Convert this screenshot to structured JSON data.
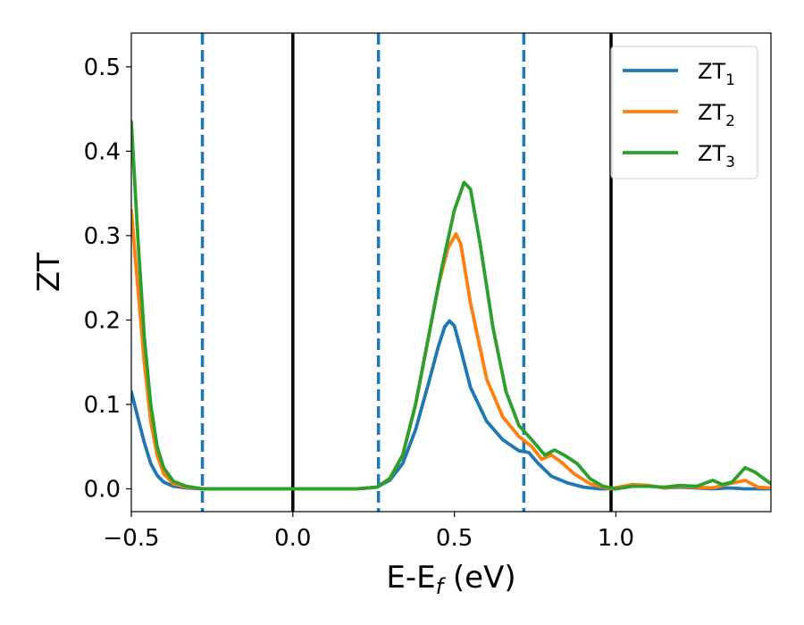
{
  "chart_data": {
    "type": "line",
    "xlabel": {
      "main": "E-E",
      "sub": "f",
      "unit": " (eV)"
    },
    "ylabel": "ZT",
    "xlim": [
      -0.5,
      1.48
    ],
    "ylim": [
      -0.027,
      0.54
    ],
    "x_ticks": [
      -0.5,
      0.0,
      0.5,
      1.0
    ],
    "x_tick_labels": [
      "−0.5",
      "0.0",
      "0.5",
      "1.0"
    ],
    "y_ticks": [
      0.0,
      0.1,
      0.2,
      0.3,
      0.4,
      0.5
    ],
    "y_tick_labels": [
      "0.0",
      "0.1",
      "0.2",
      "0.3",
      "0.4",
      "0.5"
    ],
    "grid": false,
    "legend_position": "top-right",
    "vertical_lines": [
      {
        "x": 0.0,
        "style": "solid",
        "color": "#000000"
      },
      {
        "x": 0.985,
        "style": "solid",
        "color": "#000000"
      },
      {
        "x": -0.28,
        "style": "dashed",
        "color": "#1f77b4"
      },
      {
        "x": 0.265,
        "style": "dashed",
        "color": "#1f77b4"
      },
      {
        "x": 0.715,
        "style": "dashed",
        "color": "#1f77b4"
      }
    ],
    "series": [
      {
        "name": "ZT",
        "sub": "1",
        "color": "#1f77b4",
        "points": [
          [
            -0.5,
            0.115
          ],
          [
            -0.48,
            0.085
          ],
          [
            -0.46,
            0.055
          ],
          [
            -0.44,
            0.03
          ],
          [
            -0.42,
            0.016
          ],
          [
            -0.4,
            0.008
          ],
          [
            -0.37,
            0.003
          ],
          [
            -0.33,
            0.001
          ],
          [
            -0.28,
            0.0
          ],
          [
            0.0,
            0.0
          ],
          [
            0.2,
            0.0
          ],
          [
            0.26,
            0.002
          ],
          [
            0.3,
            0.01
          ],
          [
            0.34,
            0.03
          ],
          [
            0.38,
            0.07
          ],
          [
            0.42,
            0.125
          ],
          [
            0.45,
            0.168
          ],
          [
            0.47,
            0.192
          ],
          [
            0.485,
            0.199
          ],
          [
            0.5,
            0.193
          ],
          [
            0.52,
            0.165
          ],
          [
            0.55,
            0.12
          ],
          [
            0.6,
            0.08
          ],
          [
            0.65,
            0.058
          ],
          [
            0.7,
            0.045
          ],
          [
            0.73,
            0.043
          ],
          [
            0.76,
            0.03
          ],
          [
            0.8,
            0.015
          ],
          [
            0.85,
            0.007
          ],
          [
            0.9,
            0.002
          ],
          [
            0.95,
            0.0
          ],
          [
            1.0,
            0.0
          ],
          [
            1.05,
            0.003
          ],
          [
            1.1,
            0.004
          ],
          [
            1.15,
            0.001
          ],
          [
            1.2,
            0.002
          ],
          [
            1.25,
            0.001
          ],
          [
            1.3,
            0.0
          ],
          [
            1.35,
            0.001
          ],
          [
            1.4,
            0.0
          ],
          [
            1.48,
            0.0
          ]
        ]
      },
      {
        "name": "ZT",
        "sub": "2",
        "color": "#ff7f0e",
        "points": [
          [
            -0.5,
            0.33
          ],
          [
            -0.48,
            0.24
          ],
          [
            -0.46,
            0.15
          ],
          [
            -0.44,
            0.08
          ],
          [
            -0.42,
            0.04
          ],
          [
            -0.4,
            0.018
          ],
          [
            -0.37,
            0.006
          ],
          [
            -0.33,
            0.002
          ],
          [
            -0.28,
            0.0
          ],
          [
            0.0,
            0.0
          ],
          [
            0.2,
            0.0
          ],
          [
            0.26,
            0.002
          ],
          [
            0.3,
            0.012
          ],
          [
            0.34,
            0.04
          ],
          [
            0.38,
            0.1
          ],
          [
            0.42,
            0.18
          ],
          [
            0.45,
            0.24
          ],
          [
            0.48,
            0.285
          ],
          [
            0.505,
            0.302
          ],
          [
            0.52,
            0.29
          ],
          [
            0.55,
            0.22
          ],
          [
            0.6,
            0.13
          ],
          [
            0.65,
            0.085
          ],
          [
            0.7,
            0.062
          ],
          [
            0.74,
            0.05
          ],
          [
            0.77,
            0.035
          ],
          [
            0.8,
            0.04
          ],
          [
            0.83,
            0.032
          ],
          [
            0.87,
            0.018
          ],
          [
            0.92,
            0.006
          ],
          [
            0.98,
            0.0
          ],
          [
            1.05,
            0.005
          ],
          [
            1.1,
            0.004
          ],
          [
            1.15,
            0.001
          ],
          [
            1.2,
            0.003
          ],
          [
            1.25,
            0.002
          ],
          [
            1.3,
            0.001
          ],
          [
            1.35,
            0.006
          ],
          [
            1.4,
            0.01
          ],
          [
            1.44,
            0.002
          ],
          [
            1.48,
            0.001
          ]
        ]
      },
      {
        "name": "ZT",
        "sub": "3",
        "color": "#2ca02c",
        "points": [
          [
            -0.5,
            0.435
          ],
          [
            -0.48,
            0.3
          ],
          [
            -0.46,
            0.18
          ],
          [
            -0.44,
            0.1
          ],
          [
            -0.42,
            0.05
          ],
          [
            -0.4,
            0.025
          ],
          [
            -0.37,
            0.009
          ],
          [
            -0.33,
            0.003
          ],
          [
            -0.28,
            0.0
          ],
          [
            0.0,
            0.0
          ],
          [
            0.2,
            0.0
          ],
          [
            0.26,
            0.002
          ],
          [
            0.3,
            0.012
          ],
          [
            0.34,
            0.04
          ],
          [
            0.38,
            0.1
          ],
          [
            0.42,
            0.18
          ],
          [
            0.46,
            0.26
          ],
          [
            0.5,
            0.33
          ],
          [
            0.53,
            0.363
          ],
          [
            0.55,
            0.355
          ],
          [
            0.58,
            0.29
          ],
          [
            0.62,
            0.19
          ],
          [
            0.66,
            0.115
          ],
          [
            0.7,
            0.075
          ],
          [
            0.74,
            0.058
          ],
          [
            0.78,
            0.04
          ],
          [
            0.81,
            0.046
          ],
          [
            0.84,
            0.04
          ],
          [
            0.88,
            0.03
          ],
          [
            0.92,
            0.012
          ],
          [
            0.96,
            0.003
          ],
          [
            1.0,
            0.0
          ],
          [
            1.05,
            0.003
          ],
          [
            1.1,
            0.003
          ],
          [
            1.15,
            0.002
          ],
          [
            1.2,
            0.004
          ],
          [
            1.25,
            0.003
          ],
          [
            1.3,
            0.01
          ],
          [
            1.33,
            0.005
          ],
          [
            1.36,
            0.008
          ],
          [
            1.4,
            0.025
          ],
          [
            1.43,
            0.02
          ],
          [
            1.48,
            0.006
          ]
        ]
      }
    ]
  }
}
